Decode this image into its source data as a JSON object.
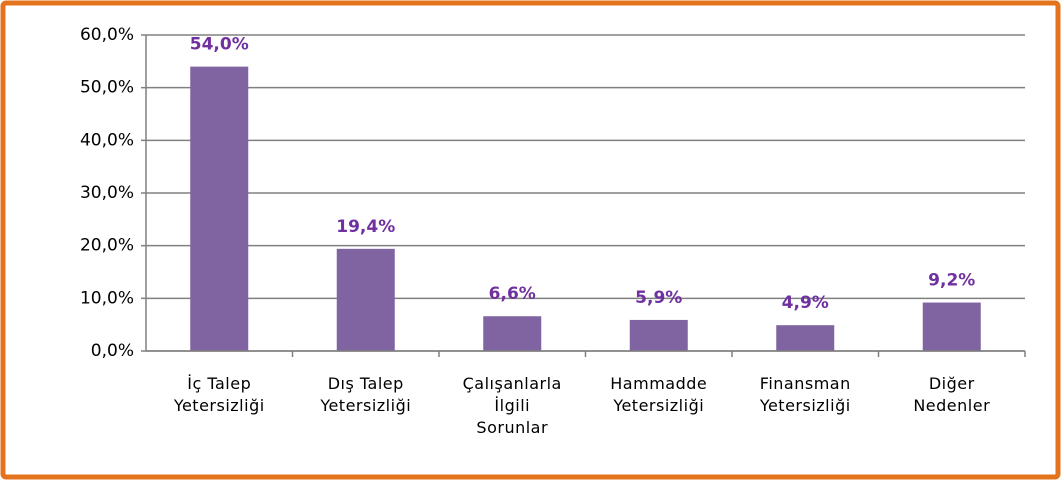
{
  "chart_data": {
    "type": "bar",
    "categories": [
      "İç Talep Yetersizliği",
      "Dış Talep Yetersizliği",
      "Çalışanlarla İlgili Sorunlar",
      "Hammadde Yetersizliği",
      "Finansman Yetersizliği",
      "Diğer Nedenler"
    ],
    "values": [
      54.0,
      19.4,
      6.6,
      5.9,
      4.9,
      9.2
    ],
    "value_labels": [
      "54,0%",
      "19,4%",
      "6,6%",
      "5,9%",
      "4,9%",
      "9,2%"
    ],
    "color": "#8064a2",
    "ylim": [
      0,
      60
    ],
    "yticks": [
      {
        "value": 0,
        "label": "0,0%"
      },
      {
        "value": 10,
        "label": "10,0%"
      },
      {
        "value": 20,
        "label": "20,0%"
      },
      {
        "value": 30,
        "label": "30,0%"
      },
      {
        "value": 40,
        "label": "40,0%"
      },
      {
        "value": 50,
        "label": "50,0%"
      },
      {
        "value": 60,
        "label": "60,0%"
      }
    ],
    "grid": true
  }
}
